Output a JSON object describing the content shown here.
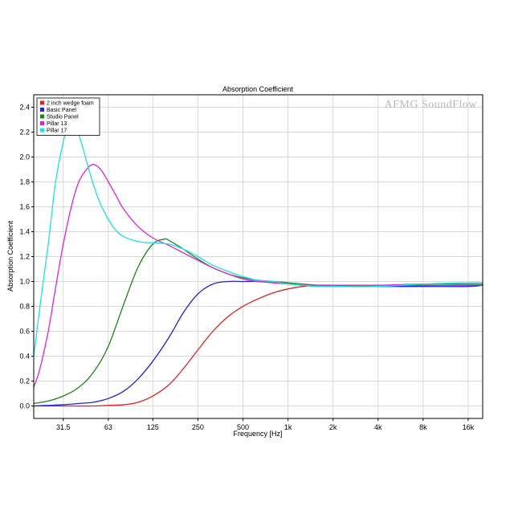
{
  "chart_data": {
    "type": "line",
    "title": "Absorption Coefficient",
    "xlabel": "Frequency [Hz]",
    "ylabel": "Absorption Coefficient",
    "watermark": "AFMG SoundFlow",
    "x_scale": "log",
    "xlim": [
      20,
      20000
    ],
    "ylim": [
      -0.1,
      2.5
    ],
    "grid": true,
    "legend_position": "top-left",
    "x_ticks": [
      {
        "value": 31.5,
        "label": "31.5"
      },
      {
        "value": 63,
        "label": "63"
      },
      {
        "value": 125,
        "label": "125"
      },
      {
        "value": 250,
        "label": "250"
      },
      {
        "value": 500,
        "label": "500"
      },
      {
        "value": 1000,
        "label": "1k"
      },
      {
        "value": 2000,
        "label": "2k"
      },
      {
        "value": 4000,
        "label": "4k"
      },
      {
        "value": 8000,
        "label": "8k"
      },
      {
        "value": 16000,
        "label": "16k"
      }
    ],
    "y_ticks": [
      {
        "value": 0.0,
        "label": "0.0"
      },
      {
        "value": 0.2,
        "label": "0.2"
      },
      {
        "value": 0.4,
        "label": "0.4"
      },
      {
        "value": 0.6,
        "label": "0.6"
      },
      {
        "value": 0.8,
        "label": "0.8"
      },
      {
        "value": 1.0,
        "label": "1.0"
      },
      {
        "value": 1.2,
        "label": "1.2"
      },
      {
        "value": 1.4,
        "label": "1.4"
      },
      {
        "value": 1.6,
        "label": "1.6"
      },
      {
        "value": 1.8,
        "label": "1.8"
      },
      {
        "value": 2.0,
        "label": "2.0"
      },
      {
        "value": 2.2,
        "label": "2.2"
      },
      {
        "value": 2.4,
        "label": "2.4"
      }
    ],
    "series": [
      {
        "name": "2 inch wedge foam",
        "color": "#e02020",
        "points": [
          [
            20,
            0.0
          ],
          [
            31.5,
            0.0
          ],
          [
            50,
            0.0
          ],
          [
            63,
            0.005
          ],
          [
            80,
            0.01
          ],
          [
            100,
            0.03
          ],
          [
            125,
            0.08
          ],
          [
            160,
            0.17
          ],
          [
            200,
            0.3
          ],
          [
            250,
            0.45
          ],
          [
            315,
            0.6
          ],
          [
            400,
            0.72
          ],
          [
            500,
            0.8
          ],
          [
            630,
            0.86
          ],
          [
            800,
            0.91
          ],
          [
            1000,
            0.94
          ],
          [
            1250,
            0.96
          ],
          [
            1600,
            0.97
          ],
          [
            2000,
            0.97
          ],
          [
            4000,
            0.97
          ],
          [
            8000,
            0.97
          ],
          [
            16000,
            0.97
          ],
          [
            20000,
            0.97
          ]
        ]
      },
      {
        "name": "Basic Panel",
        "color": "#2020e0",
        "points": [
          [
            20,
            0.0
          ],
          [
            25,
            0.005
          ],
          [
            31.5,
            0.01
          ],
          [
            40,
            0.02
          ],
          [
            50,
            0.03
          ],
          [
            63,
            0.06
          ],
          [
            80,
            0.12
          ],
          [
            100,
            0.22
          ],
          [
            125,
            0.36
          ],
          [
            160,
            0.55
          ],
          [
            200,
            0.75
          ],
          [
            250,
            0.9
          ],
          [
            315,
            0.98
          ],
          [
            400,
            1.0
          ],
          [
            500,
            1.0
          ],
          [
            630,
            1.0
          ],
          [
            800,
            0.99
          ],
          [
            1000,
            0.98
          ],
          [
            1250,
            0.97
          ],
          [
            1600,
            0.96
          ],
          [
            2000,
            0.96
          ],
          [
            4000,
            0.96
          ],
          [
            8000,
            0.96
          ],
          [
            16000,
            0.96
          ],
          [
            20000,
            0.97
          ]
        ]
      },
      {
        "name": "Studio Panel",
        "color": "#208020",
        "points": [
          [
            20,
            0.02
          ],
          [
            25,
            0.04
          ],
          [
            31.5,
            0.08
          ],
          [
            40,
            0.15
          ],
          [
            50,
            0.27
          ],
          [
            63,
            0.48
          ],
          [
            80,
            0.82
          ],
          [
            100,
            1.12
          ],
          [
            125,
            1.3
          ],
          [
            150,
            1.34
          ],
          [
            160,
            1.33
          ],
          [
            200,
            1.26
          ],
          [
            250,
            1.18
          ],
          [
            315,
            1.11
          ],
          [
            400,
            1.06
          ],
          [
            500,
            1.03
          ],
          [
            630,
            1.01
          ],
          [
            800,
            1.0
          ],
          [
            1000,
            0.99
          ],
          [
            1250,
            0.98
          ],
          [
            1600,
            0.97
          ],
          [
            2000,
            0.97
          ],
          [
            3000,
            0.96
          ],
          [
            4000,
            0.96
          ],
          [
            6000,
            0.97
          ],
          [
            8000,
            0.97
          ],
          [
            12000,
            0.97
          ],
          [
            16000,
            0.97
          ],
          [
            20000,
            0.97
          ]
        ]
      },
      {
        "name": "Pillar 13",
        "color": "#e020e0",
        "points": [
          [
            20,
            0.15
          ],
          [
            22,
            0.3
          ],
          [
            25,
            0.6
          ],
          [
            28,
            0.95
          ],
          [
            31.5,
            1.3
          ],
          [
            36,
            1.62
          ],
          [
            40,
            1.8
          ],
          [
            45,
            1.9
          ],
          [
            50,
            1.94
          ],
          [
            56,
            1.9
          ],
          [
            63,
            1.8
          ],
          [
            71,
            1.69
          ],
          [
            80,
            1.58
          ],
          [
            100,
            1.44
          ],
          [
            125,
            1.35
          ],
          [
            160,
            1.29
          ],
          [
            200,
            1.23
          ],
          [
            250,
            1.17
          ],
          [
            315,
            1.11
          ],
          [
            400,
            1.06
          ],
          [
            500,
            1.02
          ],
          [
            630,
            1.0
          ],
          [
            800,
            0.99
          ],
          [
            1000,
            0.98
          ],
          [
            1250,
            0.97
          ],
          [
            1600,
            0.97
          ],
          [
            2000,
            0.97
          ],
          [
            4000,
            0.97
          ],
          [
            8000,
            0.98
          ],
          [
            16000,
            0.98
          ],
          [
            20000,
            0.98
          ]
        ]
      },
      {
        "name": "Pillar 17",
        "color": "#20e0e0",
        "points": [
          [
            20,
            0.4
          ],
          [
            22,
            0.8
          ],
          [
            25,
            1.3
          ],
          [
            28,
            1.8
          ],
          [
            31.5,
            2.12
          ],
          [
            34,
            2.26
          ],
          [
            36,
            2.28
          ],
          [
            40,
            2.18
          ],
          [
            45,
            1.97
          ],
          [
            50,
            1.78
          ],
          [
            56,
            1.62
          ],
          [
            63,
            1.5
          ],
          [
            71,
            1.41
          ],
          [
            80,
            1.36
          ],
          [
            100,
            1.32
          ],
          [
            125,
            1.31
          ],
          [
            160,
            1.3
          ],
          [
            200,
            1.26
          ],
          [
            250,
            1.2
          ],
          [
            315,
            1.13
          ],
          [
            400,
            1.08
          ],
          [
            500,
            1.04
          ],
          [
            630,
            1.01
          ],
          [
            800,
            1.0
          ],
          [
            1000,
            0.98
          ],
          [
            1250,
            0.97
          ],
          [
            1600,
            0.96
          ],
          [
            2000,
            0.96
          ],
          [
            4000,
            0.96
          ],
          [
            8000,
            0.98
          ],
          [
            16000,
            0.99
          ],
          [
            20000,
            0.99
          ]
        ]
      }
    ]
  }
}
